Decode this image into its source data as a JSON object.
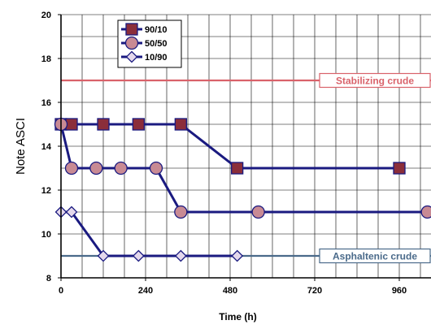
{
  "chart_data": {
    "type": "line",
    "xlabel": "Time (h)",
    "ylabel": "Note ASCI",
    "xlim": [
      0,
      1050
    ],
    "ylim": [
      8,
      20
    ],
    "xticks": [
      0,
      240,
      480,
      720,
      960
    ],
    "yticks": [
      8,
      10,
      12,
      14,
      16,
      18,
      20
    ],
    "x_grid_step": 60,
    "y_grid_step": 1,
    "grid": true,
    "legend_position": "top-left",
    "series": [
      {
        "name": "90/10",
        "marker": "square",
        "marker_color": "#8b2e3a",
        "line_color": "#1a1a80",
        "x": [
          0,
          30,
          120,
          220,
          340,
          500,
          960
        ],
        "y": [
          15,
          15,
          15,
          15,
          15,
          13,
          13
        ]
      },
      {
        "name": "50/50",
        "marker": "circle",
        "marker_color": "#c88a94",
        "line_color": "#1a1a80",
        "x": [
          0,
          30,
          100,
          170,
          270,
          340,
          560,
          1040
        ],
        "y": [
          15,
          13,
          13,
          13,
          13,
          11,
          11,
          11
        ]
      },
      {
        "name": "10/90",
        "marker": "diamond",
        "marker_color": "#e4d8ec",
        "line_color": "#1a1a80",
        "x": [
          0,
          30,
          120,
          220,
          340,
          500
        ],
        "y": [
          11,
          11,
          9,
          9,
          9,
          9
        ]
      }
    ],
    "reference_lines": [
      {
        "label": "Stabilizing crude",
        "y": 17,
        "color": "#d9626a"
      },
      {
        "label": "Asphaltenic crude",
        "y": 9,
        "color": "#4a6a8a"
      }
    ]
  }
}
